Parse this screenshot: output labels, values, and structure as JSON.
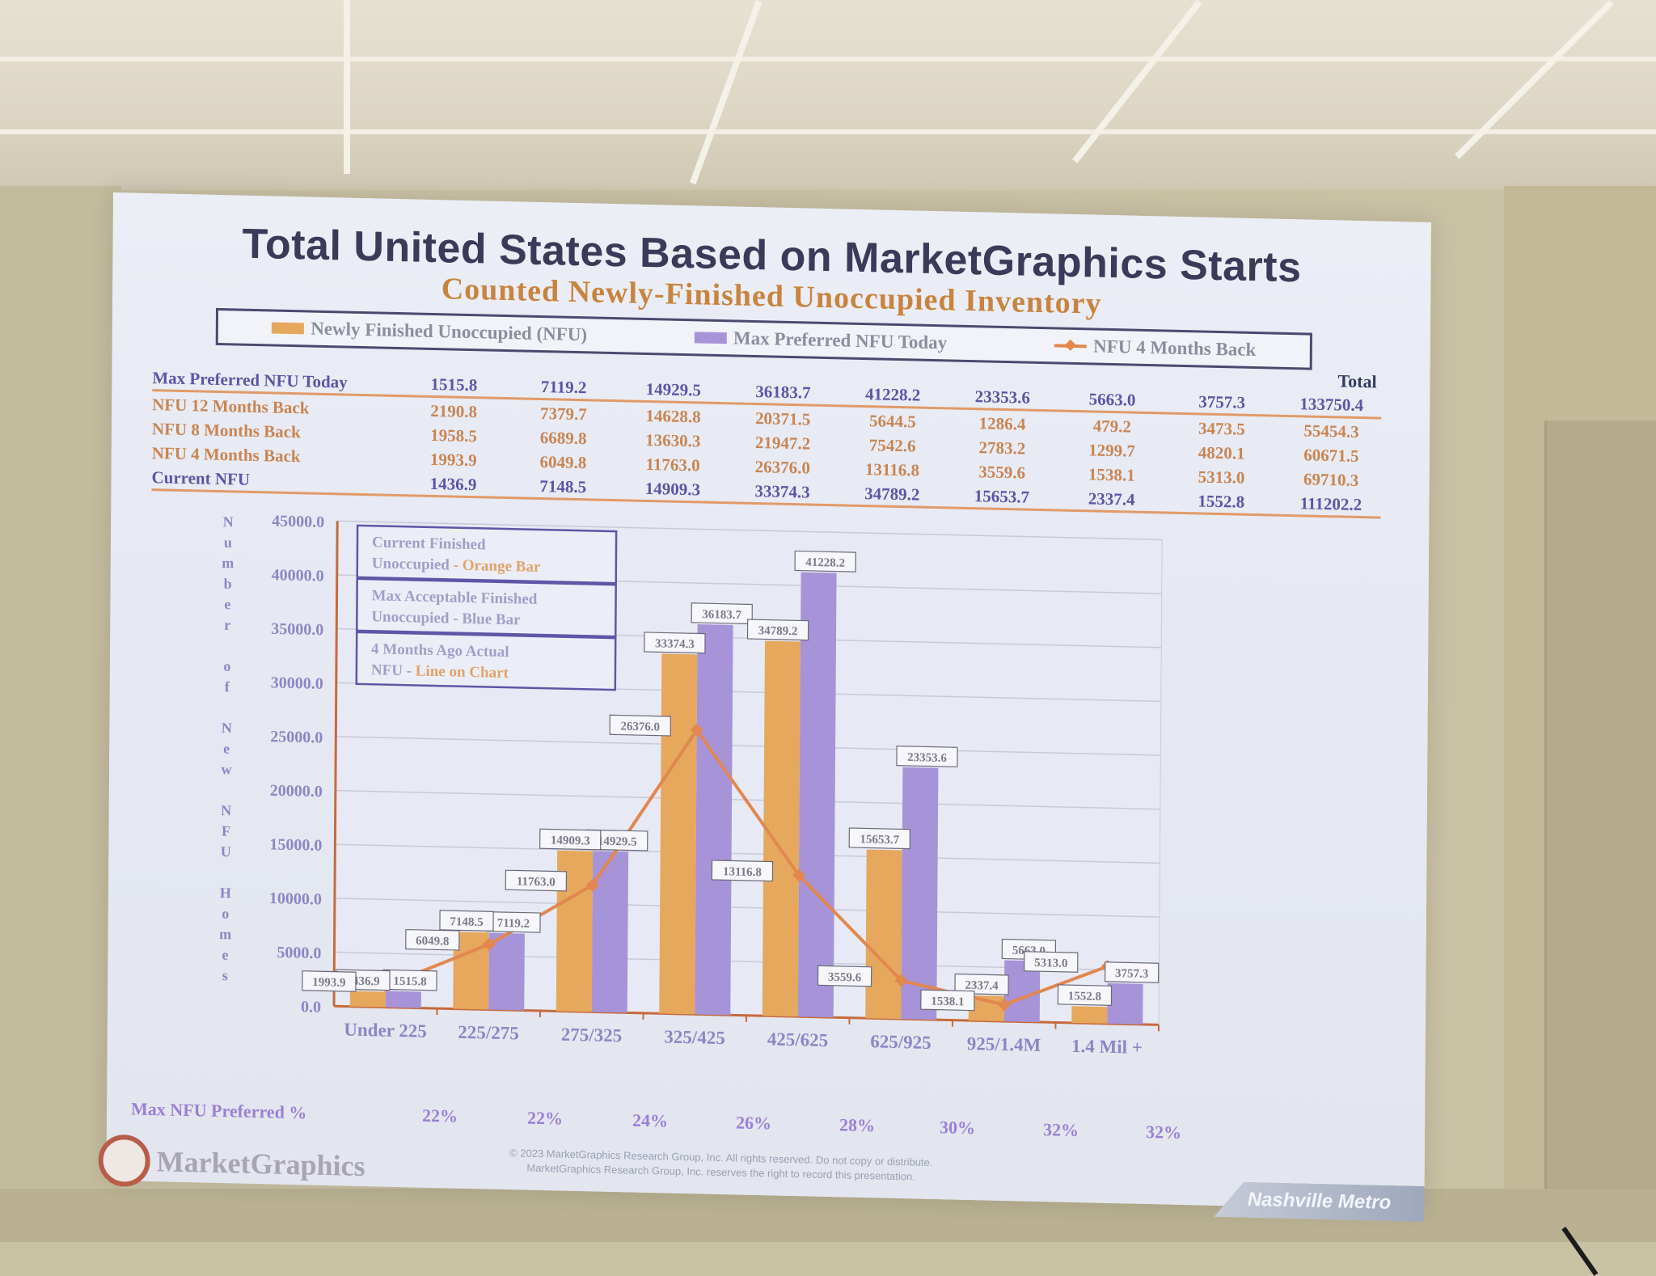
{
  "slide": {
    "title": "Total United States Based on MarketGraphics Starts",
    "subtitle": "Counted Newly-Finished Unoccupied Inventory",
    "legend": [
      "Newly Finished Unoccupied (NFU)",
      "Max Preferred NFU Today",
      "NFU 4 Months Back"
    ],
    "total_label": "Total",
    "table": [
      {
        "label": "Max Preferred NFU Today",
        "values": [
          "1515.8",
          "7119.2",
          "14929.5",
          "36183.7",
          "41228.2",
          "23353.6",
          "5663.0",
          "3757.3",
          "133750.4"
        ]
      },
      {
        "label": "NFU 12 Months Back",
        "values": [
          "2190.8",
          "7379.7",
          "14628.8",
          "20371.5",
          "5644.5",
          "1286.4",
          "479.2",
          "3473.5",
          "55454.3"
        ]
      },
      {
        "label": "NFU 8 Months Back",
        "values": [
          "1958.5",
          "6689.8",
          "13630.3",
          "21947.2",
          "7542.6",
          "2783.2",
          "1299.7",
          "4820.1",
          "60671.5"
        ]
      },
      {
        "label": "NFU 4 Months Back",
        "values": [
          "1993.9",
          "6049.8",
          "11763.0",
          "26376.0",
          "13116.8",
          "3559.6",
          "1538.1",
          "5313.0",
          "69710.3"
        ]
      },
      {
        "label": "Current NFU",
        "values": [
          "1436.9",
          "7148.5",
          "14909.3",
          "33374.3",
          "34789.2",
          "15653.7",
          "2337.4",
          "1552.8",
          "111202.2"
        ]
      }
    ],
    "info_boxes": [
      {
        "line1": "Current Finished",
        "line2a": "Unoccupied",
        "line2b": " - Orange Bar"
      },
      {
        "line1": "Max Acceptable Finished",
        "line2a": "Unoccupied - Blue Bar",
        "line2b": ""
      },
      {
        "line1": "4 Months Ago Actual",
        "line2a": "NFU - ",
        "line2b": "Line on Chart"
      }
    ],
    "y_axis_title_chars": [
      "N",
      "u",
      "m",
      "b",
      "e",
      "r",
      "",
      "o",
      "f",
      "",
      "N",
      "e",
      "w",
      "",
      "N",
      "F",
      "U",
      "",
      "H",
      "o",
      "m",
      "e",
      "s"
    ],
    "footer_label": "Max NFU Preferred %",
    "footer_pcts": [
      "22%",
      "22%",
      "24%",
      "26%",
      "28%",
      "30%",
      "32%",
      "32%"
    ],
    "copyright_line1": "© 2023 MarketGraphics Research Group, Inc. All rights reserved. Do not copy or distribute.",
    "copyright_line2": "MarketGraphics Research Group, Inc. reserves the right to record this presentation.",
    "logo_text": "MarketGraphics",
    "region_tag": "Nashville Metro"
  },
  "chart_data": {
    "type": "bar",
    "categories": [
      "Under 225",
      "225/275",
      "275/325",
      "325/425",
      "425/625",
      "625/925",
      "925/1.4M",
      "1.4 Mil +"
    ],
    "series": [
      {
        "name": "Newly Finished Unoccupied (NFU)",
        "kind": "bar",
        "color": "#e6a85d",
        "values": [
          1436.9,
          7148.5,
          14909.3,
          33374.3,
          34789.2,
          15653.7,
          2337.4,
          1552.8
        ]
      },
      {
        "name": "Max Preferred NFU Today",
        "kind": "bar",
        "color": "#a793d8",
        "values": [
          1515.8,
          7119.2,
          14929.5,
          36183.7,
          41228.2,
          23353.6,
          5663.0,
          3757.3
        ]
      },
      {
        "name": "NFU 4 Months Back",
        "kind": "line",
        "color": "#e2874f",
        "values": [
          1993.9,
          6049.8,
          11763.0,
          26376.0,
          13116.8,
          3559.6,
          1538.1,
          5313.0
        ]
      }
    ],
    "ylim": [
      0,
      45000
    ],
    "yticks": [
      "0.0",
      "5000.0",
      "10000.0",
      "15000.0",
      "20000.0",
      "25000.0",
      "30000.0",
      "35000.0",
      "40000.0",
      "45000.0"
    ],
    "grid": true
  }
}
